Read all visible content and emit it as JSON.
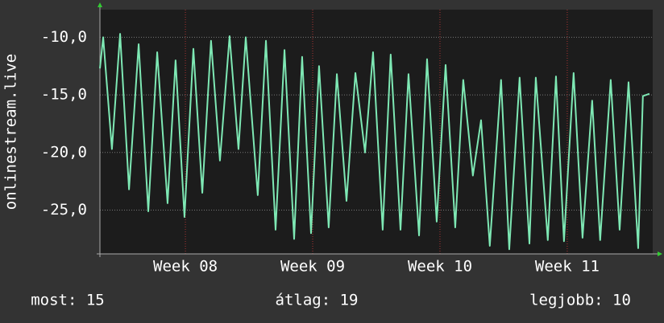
{
  "chart_data": {
    "type": "line",
    "y_label": "onlinestream.live",
    "x": [
      0,
      0.18,
      0.66,
      1.11,
      1.6,
      2.13,
      2.66,
      3.15,
      3.72,
      4.16,
      4.65,
      5.14,
      5.63,
      6.11,
      6.6,
      7.13,
      7.62,
      8.02,
      8.68,
      9.13,
      9.66,
      10.15,
      10.68,
      11.12,
      11.61,
      12.05,
      12.58,
      13.03,
      13.56,
      14.05,
      14.58,
      15.02,
      15.55,
      15.99,
      16.53,
      16.97,
      17.55,
      17.99,
      18.52,
      19.01,
      19.54,
      19.98,
      20.51,
      20.96,
      21.44,
      22.06,
      22.51,
      23.08,
      23.62,
      23.97,
      24.63,
      25.08,
      25.52,
      26.05,
      26.54,
      27.07,
      27.51,
      28.09,
      28.58,
      29.07,
      29.6,
      29.86,
      30.22
    ],
    "series": [
      {
        "color": "#7ee8b4",
        "values": [
          -12.7,
          -10,
          -19.7,
          -9.7,
          -23.2,
          -10.6,
          -25.1,
          -11.3,
          -24.4,
          -12,
          -25.6,
          -11,
          -23.5,
          -10.3,
          -20.7,
          -9.9,
          -19.7,
          -10,
          -23.7,
          -10.3,
          -26.7,
          -11.1,
          -27.5,
          -11.7,
          -27,
          -12.5,
          -26.5,
          -13.2,
          -24.2,
          -13.1,
          -20,
          -11.3,
          -26.7,
          -11.5,
          -26.7,
          -13.2,
          -27.2,
          -11.9,
          -26,
          -12.4,
          -26.5,
          -13.7,
          -22,
          -17.2,
          -28.1,
          -13.7,
          -28.4,
          -13.5,
          -27.9,
          -13.5,
          -27.6,
          -13.4,
          -27.7,
          -13.1,
          -27.4,
          -15.5,
          -27.6,
          -13.7,
          -26.7,
          -13.9,
          -28.3,
          -15.1,
          -14.9
        ]
      }
    ],
    "xlim": [
      0,
      30.4
    ],
    "xticks": [
      {
        "value": 4.7,
        "label": "Week 08"
      },
      {
        "value": 11.7,
        "label": "Week 09"
      },
      {
        "value": 18.7,
        "label": "Week 10"
      },
      {
        "value": 25.7,
        "label": "Week 11"
      }
    ],
    "ylim": [
      -28.8,
      -7.6
    ],
    "yticks": [
      {
        "value": -10,
        "label": "-10,0"
      },
      {
        "value": -15,
        "label": "-15,0"
      },
      {
        "value": -20,
        "label": "-20,0"
      },
      {
        "value": -25,
        "label": "-25,0"
      }
    ],
    "grid": true,
    "footer": [
      "most: 15",
      "átlag: 19",
      "legjobb: 10"
    ]
  }
}
